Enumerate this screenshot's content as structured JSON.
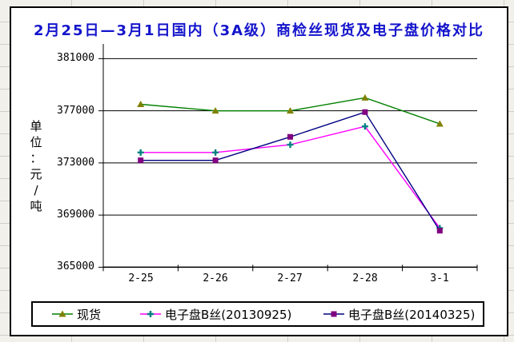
{
  "window": {
    "background_color": "#F1F0EA",
    "cell_grid_color": "#CFCEC6",
    "chart_border_color": "#000000",
    "chart_background": "#FFFFFF"
  },
  "chart_data": {
    "type": "line",
    "title": "2月25日—3月1日国内（3A级）商检丝现货及电子盘价格对比",
    "title_color": "#1414CC",
    "y_axis_title": "单位：元/吨",
    "categories": [
      "2-25",
      "2-26",
      "2-27",
      "2-28",
      "3-1"
    ],
    "y_ticks": [
      "381000",
      "377000",
      "373000",
      "369000",
      "365000"
    ],
    "ylim": [
      365000,
      382000
    ],
    "y_major_unit": 4000,
    "grid": "horizontal-major",
    "legend_position": "bottom",
    "axis_color": "#000000",
    "series": [
      {
        "name": "现货",
        "values": [
          377500,
          377000,
          377000,
          378000,
          376000
        ],
        "line_color": "#008000",
        "marker": "triangle",
        "marker_color": "#808000"
      },
      {
        "name": "电子盘B丝(20130925)",
        "values": [
          373800,
          373800,
          374400,
          375800,
          368000
        ],
        "line_color": "#FF00FF",
        "marker": "plus",
        "marker_color": "#008080"
      },
      {
        "name": "电子盘B丝(20140325)",
        "values": [
          373200,
          373200,
          375000,
          376900,
          367800
        ],
        "line_color": "#000080",
        "marker": "square",
        "marker_color": "#800080"
      }
    ]
  }
}
